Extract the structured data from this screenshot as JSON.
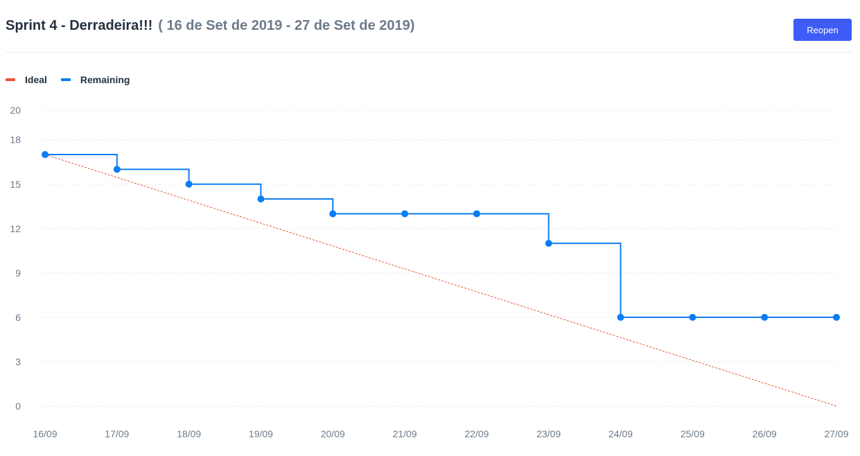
{
  "header": {
    "title": "Sprint 4 - Derradeira!!!",
    "date_range": "( 16 de Set de 2019 - 27 de Set de 2019)",
    "reopen_label": "Reopen"
  },
  "colors": {
    "ideal": "#e8553a",
    "remaining": "#0a7cf5",
    "button": "#3f5cf6",
    "grid": "#e9ecef"
  },
  "chart_data": {
    "type": "line",
    "title": "",
    "xlabel": "",
    "ylabel": "",
    "categories": [
      "16/09",
      "17/09",
      "18/09",
      "19/09",
      "20/09",
      "21/09",
      "22/09",
      "23/09",
      "24/09",
      "25/09",
      "26/09",
      "27/09"
    ],
    "yticks": [
      0,
      3,
      6,
      9,
      12,
      15,
      18,
      20
    ],
    "ylim": [
      0,
      20
    ],
    "grid": true,
    "legend_position": "top-left",
    "series": [
      {
        "name": "Ideal",
        "style": "dashed-linear",
        "values": [
          17,
          null,
          null,
          null,
          null,
          null,
          null,
          null,
          null,
          null,
          null,
          0
        ]
      },
      {
        "name": "Remaining",
        "style": "step",
        "values": [
          17,
          16,
          15,
          14,
          13,
          13,
          13,
          11,
          6,
          6,
          6,
          6
        ]
      }
    ]
  }
}
